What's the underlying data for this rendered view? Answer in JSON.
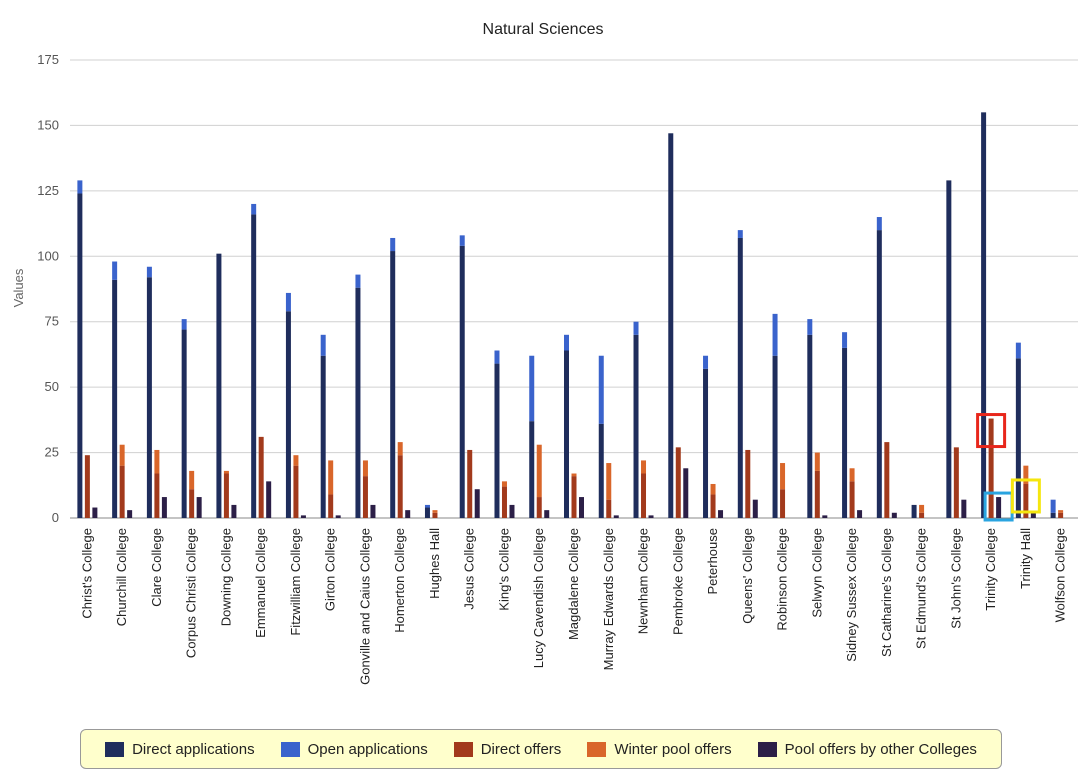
{
  "chart_data": {
    "type": "bar",
    "title": "Natural Sciences",
    "ylabel": "Values",
    "xlabel": "",
    "ylim": [
      0,
      175
    ],
    "yticks": [
      0,
      25,
      50,
      75,
      100,
      125,
      150,
      175
    ],
    "grid": true,
    "legend_position": "bottom",
    "categories": [
      "Christ's College",
      "Churchill College",
      "Clare College",
      "Corpus Christi College",
      "Downing College",
      "Emmanuel College",
      "Fitzwilliam College",
      "Girton College",
      "Gonville and Caius College",
      "Homerton College",
      "Hughes Hall",
      "Jesus College",
      "King's College",
      "Lucy Cavendish College",
      "Magdalene College",
      "Murray Edwards College",
      "Newnham College",
      "Pembroke College",
      "Peterhouse",
      "Queens' College",
      "Robinson College",
      "Selwyn College",
      "Sidney Sussex College",
      "St Catharine's College",
      "St Edmund's College",
      "St John's College",
      "Trinity College",
      "Trinity Hall",
      "Wolfson College"
    ],
    "series": [
      {
        "name": "Direct applications",
        "color": "#1f2d5c",
        "stack": 0,
        "values": [
          124,
          91,
          92,
          72,
          101,
          116,
          79,
          62,
          88,
          102,
          4,
          104,
          59,
          37,
          64,
          36,
          70,
          147,
          57,
          107,
          62,
          70,
          65,
          110,
          5,
          129,
          155,
          61,
          2
        ]
      },
      {
        "name": "Open applications",
        "color": "#3a63cc",
        "stack": 0,
        "values": [
          5,
          7,
          4,
          4,
          0,
          4,
          7,
          8,
          5,
          5,
          1,
          4,
          5,
          25,
          6,
          26,
          5,
          0,
          5,
          3,
          16,
          6,
          6,
          5,
          0,
          0,
          0,
          6,
          5
        ]
      },
      {
        "name": "Direct offers",
        "color": "#a23a1c",
        "stack": 1,
        "values": [
          24,
          20,
          17,
          11,
          17,
          31,
          20,
          9,
          16,
          24,
          2,
          26,
          12,
          8,
          16,
          7,
          17,
          27,
          9,
          26,
          11,
          18,
          14,
          29,
          2,
          27,
          38,
          13,
          2
        ]
      },
      {
        "name": "Winter pool offers",
        "color": "#d9662a",
        "stack": 1,
        "values": [
          0,
          8,
          9,
          7,
          1,
          0,
          4,
          13,
          6,
          5,
          1,
          0,
          2,
          20,
          1,
          14,
          5,
          0,
          4,
          0,
          10,
          7,
          5,
          0,
          3,
          0,
          0,
          7,
          1
        ]
      },
      {
        "name": "Pool offers by other Colleges",
        "color": "#2c1f47",
        "stack": 2,
        "values": [
          4,
          3,
          8,
          8,
          5,
          14,
          1,
          1,
          5,
          3,
          0,
          11,
          5,
          3,
          8,
          1,
          1,
          19,
          3,
          7,
          0,
          1,
          3,
          2,
          0,
          7,
          8,
          2,
          0
        ]
      }
    ]
  },
  "legend": {
    "items": [
      {
        "label": "Direct applications",
        "color": "#1f2d5c"
      },
      {
        "label": "Open applications",
        "color": "#3a63cc"
      },
      {
        "label": "Direct offers",
        "color": "#a23a1c"
      },
      {
        "label": "Winter pool offers",
        "color": "#d9662a"
      },
      {
        "label": "Pool offers by other Colleges",
        "color": "#2c1f47"
      }
    ]
  },
  "highlights": [
    {
      "category": "Trinity College",
      "series": "Direct offers",
      "color": "#e8261b"
    },
    {
      "category": "Trinity College",
      "series": "Pool offers by other Colleges",
      "color": "#2aa4e0"
    },
    {
      "category": "Trinity Hall",
      "series": "Direct offers",
      "color": "#f5e60f"
    }
  ]
}
